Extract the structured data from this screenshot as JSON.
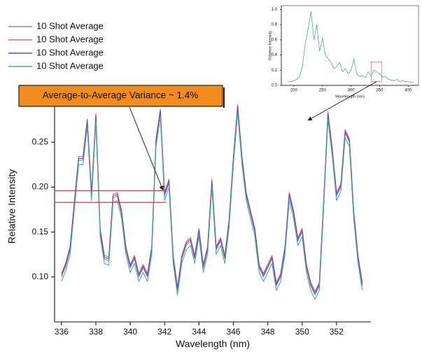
{
  "chart_data": [
    {
      "type": "line",
      "xlabel": "Wavelength (nm)",
      "ylabel": "Relative Intensity",
      "annotation": "Average-to-Average Variance ~ 1.4%",
      "xlim": [
        335.6,
        354
      ],
      "ylim": [
        0.05,
        0.307
      ],
      "xticks": [
        336,
        338,
        340,
        342,
        344,
        346,
        348,
        350,
        352
      ],
      "yticks": [
        {
          "value": 0.1,
          "label": "0.10"
        },
        0.15,
        {
          "value": 0.2,
          "label": "0.20"
        },
        0.25
      ],
      "hlines": [
        {
          "y": 0.196,
          "xmax": 342.1
        },
        {
          "y": 0.183,
          "xmax": 342.1
        }
      ],
      "hline_color": "#d9363e",
      "legend": "upper left",
      "x": [
        336,
        336.25,
        336.5,
        336.75,
        337,
        337.25,
        337.5,
        337.75,
        338,
        338.25,
        338.5,
        338.75,
        339,
        339.25,
        339.5,
        339.75,
        340,
        340.25,
        340.5,
        340.75,
        341,
        341.25,
        341.5,
        341.75,
        342,
        342.25,
        342.5,
        342.75,
        343,
        343.25,
        343.5,
        343.75,
        344,
        344.25,
        344.5,
        344.75,
        345,
        345.25,
        345.5,
        345.75,
        346,
        346.25,
        346.5,
        346.75,
        347,
        347.25,
        347.5,
        347.75,
        348,
        348.25,
        348.5,
        348.75,
        349,
        349.25,
        349.5,
        349.75,
        350,
        350.25,
        350.5,
        350.75,
        351,
        351.25,
        351.5,
        351.75,
        352,
        352.25,
        352.5,
        352.75,
        353,
        353.25,
        353.5
      ],
      "series": [
        {
          "name": "10 Shot Average",
          "color": "#8a8a8a",
          "values": [
            0.1,
            0.112,
            0.13,
            0.18,
            0.23,
            0.23,
            0.272,
            0.19,
            0.278,
            0.15,
            0.12,
            0.118,
            0.188,
            0.19,
            0.17,
            0.13,
            0.11,
            0.12,
            0.1,
            0.11,
            0.1,
            0.13,
            0.25,
            0.283,
            0.19,
            0.205,
            0.12,
            0.085,
            0.12,
            0.135,
            0.14,
            0.12,
            0.15,
            0.11,
            0.13,
            0.205,
            0.13,
            0.14,
            0.12,
            0.16,
            0.23,
            0.288,
            0.23,
            0.19,
            0.17,
            0.15,
            0.11,
            0.1,
            0.11,
            0.12,
            0.09,
            0.1,
            0.13,
            0.19,
            0.17,
            0.14,
            0.15,
            0.11,
            0.09,
            0.08,
            0.09,
            0.18,
            0.28,
            0.24,
            0.19,
            0.2,
            0.26,
            0.25,
            0.17,
            0.12,
            0.09
          ]
        },
        {
          "name": "10 Shot Average",
          "color": "#e0607a",
          "values": [
            0.104,
            0.116,
            0.134,
            0.184,
            0.234,
            0.234,
            0.276,
            0.194,
            0.282,
            0.154,
            0.124,
            0.122,
            0.192,
            0.194,
            0.174,
            0.134,
            0.114,
            0.124,
            0.104,
            0.114,
            0.104,
            0.134,
            0.254,
            0.287,
            0.194,
            0.209,
            0.124,
            0.089,
            0.124,
            0.139,
            0.144,
            0.124,
            0.154,
            0.114,
            0.134,
            0.209,
            0.134,
            0.144,
            0.124,
            0.164,
            0.234,
            0.292,
            0.234,
            0.194,
            0.174,
            0.154,
            0.114,
            0.104,
            0.114,
            0.124,
            0.094,
            0.104,
            0.134,
            0.194,
            0.174,
            0.144,
            0.154,
            0.114,
            0.094,
            0.084,
            0.094,
            0.184,
            0.284,
            0.244,
            0.194,
            0.204,
            0.264,
            0.254,
            0.174,
            0.124,
            0.094
          ]
        },
        {
          "name": "10 Shot Average",
          "color": "#5a4fc8",
          "values": [
            0.102,
            0.114,
            0.132,
            0.182,
            0.232,
            0.232,
            0.274,
            0.192,
            0.28,
            0.152,
            0.122,
            0.12,
            0.19,
            0.192,
            0.172,
            0.132,
            0.112,
            0.122,
            0.102,
            0.112,
            0.102,
            0.132,
            0.252,
            0.285,
            0.192,
            0.207,
            0.122,
            0.087,
            0.122,
            0.137,
            0.142,
            0.122,
            0.152,
            0.112,
            0.132,
            0.207,
            0.132,
            0.142,
            0.122,
            0.162,
            0.232,
            0.29,
            0.232,
            0.192,
            0.172,
            0.152,
            0.112,
            0.102,
            0.112,
            0.122,
            0.092,
            0.102,
            0.132,
            0.192,
            0.172,
            0.142,
            0.152,
            0.112,
            0.092,
            0.082,
            0.092,
            0.182,
            0.282,
            0.242,
            0.192,
            0.202,
            0.262,
            0.252,
            0.172,
            0.122,
            0.092
          ]
        },
        {
          "name": "10 Shot Average",
          "color": "#4aa89a",
          "values": [
            0.095,
            0.107,
            0.125,
            0.175,
            0.225,
            0.225,
            0.267,
            0.185,
            0.273,
            0.145,
            0.115,
            0.113,
            0.183,
            0.185,
            0.165,
            0.125,
            0.105,
            0.115,
            0.095,
            0.105,
            0.095,
            0.125,
            0.245,
            0.278,
            0.185,
            0.2,
            0.115,
            0.08,
            0.115,
            0.13,
            0.135,
            0.115,
            0.145,
            0.105,
            0.125,
            0.2,
            0.125,
            0.135,
            0.115,
            0.155,
            0.225,
            0.283,
            0.225,
            0.185,
            0.165,
            0.145,
            0.105,
            0.095,
            0.105,
            0.115,
            0.085,
            0.095,
            0.125,
            0.185,
            0.165,
            0.135,
            0.145,
            0.105,
            0.085,
            0.075,
            0.085,
            0.175,
            0.275,
            0.235,
            0.185,
            0.195,
            0.255,
            0.245,
            0.165,
            0.115,
            0.085
          ]
        }
      ]
    },
    {
      "type": "line",
      "xlabel": "Wavelength (nm)",
      "ylabel": "Relative Intensity",
      "xlim": [
        178,
        418
      ],
      "ylim": [
        0,
        1.05
      ],
      "xticks": [
        200,
        250,
        300,
        350,
        400
      ],
      "yticks": [
        {
          "value": 0,
          "label": "0.0"
        },
        0.2,
        0.4,
        0.6,
        0.8,
        {
          "value": 1,
          "label": "1.0"
        }
      ],
      "zoom_color": "#d9363e",
      "x": [
        190,
        195,
        200,
        205,
        210,
        215,
        220,
        225,
        230,
        235,
        240,
        245,
        250,
        255,
        260,
        265,
        270,
        275,
        280,
        285,
        290,
        295,
        300,
        305,
        310,
        315,
        320,
        325,
        330,
        335,
        340,
        345,
        350,
        355,
        360,
        365,
        370,
        375,
        380,
        385,
        390,
        395,
        400,
        405,
        410
      ],
      "series": [
        {
          "color": "#3a9a9a",
          "values": [
            0.05,
            0.05,
            0.06,
            0.08,
            0.12,
            0.25,
            0.55,
            0.75,
            0.97,
            0.6,
            0.8,
            0.45,
            0.62,
            0.4,
            0.35,
            0.3,
            0.22,
            0.25,
            0.3,
            0.18,
            0.22,
            0.15,
            0.2,
            0.35,
            0.15,
            0.12,
            0.13,
            0.1,
            0.18,
            0.12,
            0.2,
            0.18,
            0.15,
            0.1,
            0.12,
            0.08,
            0.07,
            0.06,
            0.08,
            0.05,
            0.06,
            0.05,
            0.05,
            0.04,
            0.04
          ]
        }
      ]
    }
  ]
}
